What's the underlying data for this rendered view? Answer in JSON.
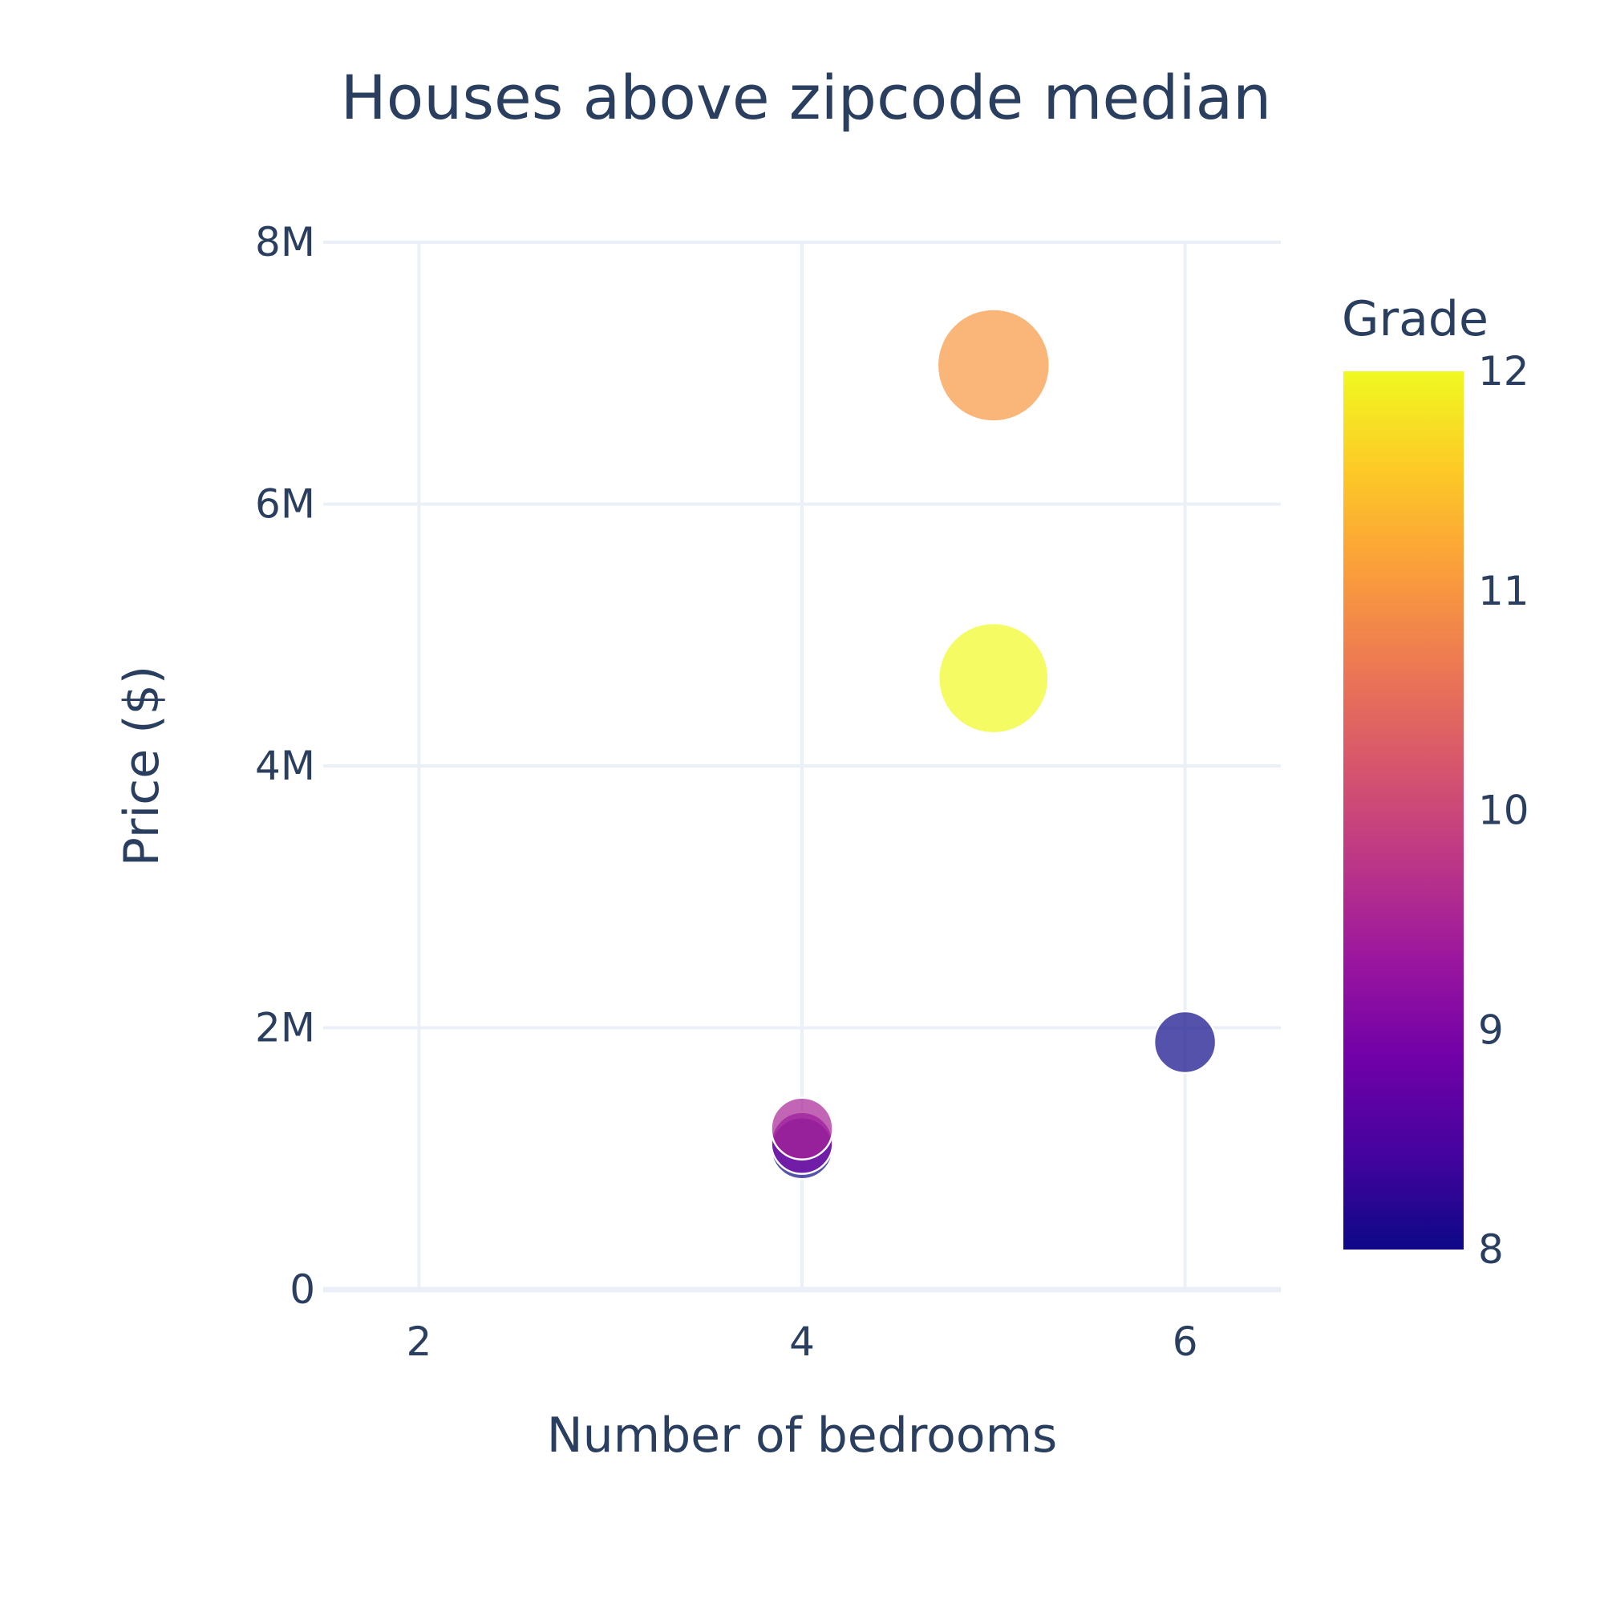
{
  "chart_data": {
    "type": "scatter",
    "title": "Houses above zipcode median",
    "xlabel": "Number of bedrooms",
    "ylabel": "Price ($)",
    "xlim": [
      1.5,
      6.5
    ],
    "ylim": [
      0,
      8000000
    ],
    "x_ticks": [
      {
        "value": 2,
        "label": "2"
      },
      {
        "value": 4,
        "label": "4"
      },
      {
        "value": 6,
        "label": "6"
      }
    ],
    "y_ticks": [
      {
        "value": 0,
        "label": "0"
      },
      {
        "value": 2000000,
        "label": "2M"
      },
      {
        "value": 4000000,
        "label": "4M"
      },
      {
        "value": 6000000,
        "label": "6M"
      },
      {
        "value": 8000000,
        "label": "8M"
      }
    ],
    "grid": true,
    "colorbar": {
      "title": "Grade",
      "range": [
        8,
        12
      ],
      "ticks": [
        {
          "value": 8,
          "label": "8"
        },
        {
          "value": 9,
          "label": "9"
        },
        {
          "value": 10,
          "label": "10"
        },
        {
          "value": 11,
          "label": "11"
        },
        {
          "value": 12,
          "label": "12"
        }
      ],
      "colorscale": [
        "#0d0887",
        "#46039f",
        "#7201a8",
        "#9c179e",
        "#bd3786",
        "#d8576b",
        "#ed7953",
        "#fb9f3a",
        "#fdca26",
        "#f0f921"
      ]
    },
    "points": [
      {
        "x": 5,
        "y": 7060000,
        "grade": 11,
        "size": 1.0
      },
      {
        "x": 5,
        "y": 4670000,
        "grade": 12,
        "size": 0.98
      },
      {
        "x": 6,
        "y": 1890000,
        "grade": 8,
        "size": 0.55
      },
      {
        "x": 4,
        "y": 1080000,
        "grade": 8,
        "size": 0.55
      },
      {
        "x": 4,
        "y": 1120000,
        "grade": 9,
        "size": 0.55
      },
      {
        "x": 4,
        "y": 1230000,
        "grade": 9.5,
        "size": 0.55
      }
    ]
  }
}
